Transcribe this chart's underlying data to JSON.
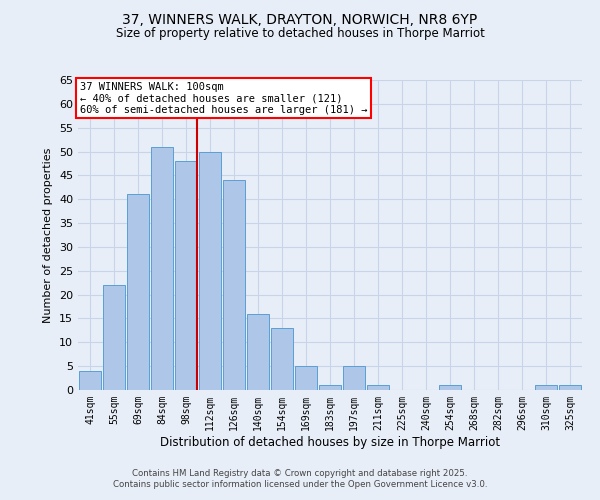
{
  "title1": "37, WINNERS WALK, DRAYTON, NORWICH, NR8 6YP",
  "title2": "Size of property relative to detached houses in Thorpe Marriot",
  "xlabel": "Distribution of detached houses by size in Thorpe Marriot",
  "ylabel": "Number of detached properties",
  "categories": [
    "41sqm",
    "55sqm",
    "69sqm",
    "84sqm",
    "98sqm",
    "112sqm",
    "126sqm",
    "140sqm",
    "154sqm",
    "169sqm",
    "183sqm",
    "197sqm",
    "211sqm",
    "225sqm",
    "240sqm",
    "254sqm",
    "268sqm",
    "282sqm",
    "296sqm",
    "310sqm",
    "325sqm"
  ],
  "values": [
    4,
    22,
    41,
    51,
    48,
    50,
    44,
    16,
    13,
    5,
    1,
    5,
    1,
    0,
    0,
    1,
    0,
    0,
    0,
    1,
    1
  ],
  "bar_color": "#aec6e8",
  "bar_edge_color": "#5a9fd4",
  "grid_color": "#c8d4e8",
  "background_color": "#e8eef8",
  "vline_x_index": 4,
  "vline_color": "#cc0000",
  "annotation_line1": "37 WINNERS WALK: 100sqm",
  "annotation_line2": "← 40% of detached houses are smaller (121)",
  "annotation_line3": "60% of semi-detached houses are larger (181) →",
  "footer1": "Contains HM Land Registry data © Crown copyright and database right 2025.",
  "footer2": "Contains public sector information licensed under the Open Government Licence v3.0.",
  "ylim": [
    0,
    65
  ],
  "yticks": [
    0,
    5,
    10,
    15,
    20,
    25,
    30,
    35,
    40,
    45,
    50,
    55,
    60,
    65
  ]
}
